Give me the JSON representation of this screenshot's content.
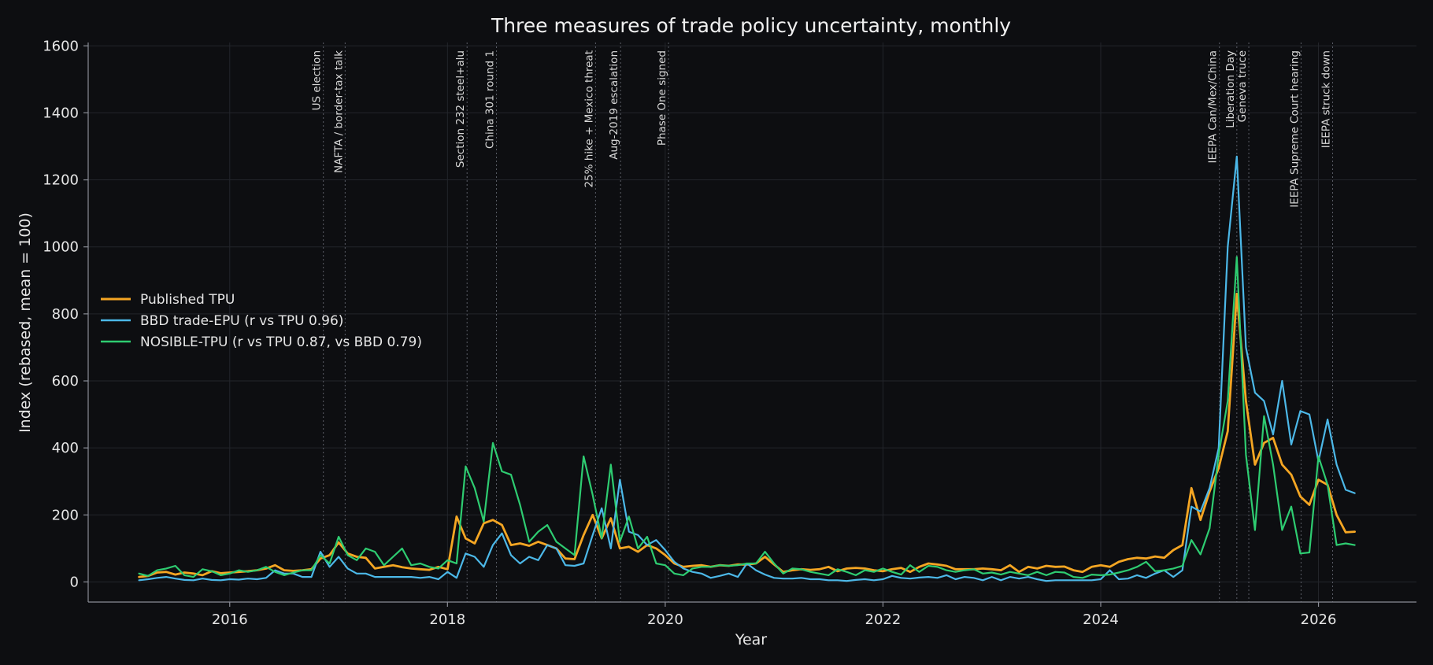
{
  "chart_data": {
    "type": "line",
    "title": "Three measures of trade policy uncertainty, monthly",
    "xlabel": "Year",
    "ylabel": "Index (rebased, mean = 100)",
    "xlim": [
      2014.7,
      2026.9
    ],
    "ylim": [
      -60,
      1610
    ],
    "xticks": [
      2016,
      2018,
      2020,
      2022,
      2024,
      2026
    ],
    "yticks": [
      0,
      200,
      400,
      600,
      800,
      1000,
      1200,
      1400,
      1600
    ],
    "grid": true,
    "legend_position": "center-left",
    "x_start": 2015.167,
    "x_step": 0.08333,
    "series": [
      {
        "name": "Published TPU",
        "color": "#f5a623",
        "values": [
          15,
          18,
          28,
          30,
          22,
          28,
          25,
          20,
          32,
          26,
          28,
          30,
          32,
          35,
          40,
          50,
          35,
          33,
          35,
          38,
          70,
          80,
          118,
          85,
          75,
          72,
          40,
          45,
          50,
          44,
          40,
          38,
          36,
          45,
          38,
          195,
          130,
          115,
          175,
          185,
          170,
          110,
          115,
          108,
          120,
          110,
          100,
          70,
          68,
          140,
          200,
          130,
          190,
          100,
          105,
          90,
          110,
          100,
          80,
          55,
          45,
          48,
          50,
          45,
          50,
          48,
          52,
          52,
          55,
          75,
          52,
          30,
          35,
          38,
          36,
          38,
          45,
          32,
          40,
          42,
          40,
          35,
          32,
          38,
          42,
          30,
          45,
          55,
          52,
          48,
          38,
          38,
          38,
          40,
          38,
          35,
          50,
          30,
          45,
          40,
          48,
          45,
          46,
          35,
          30,
          45,
          50,
          45,
          60,
          68,
          72,
          70,
          76,
          72,
          95,
          110,
          280,
          185,
          270,
          340,
          450,
          860,
          540,
          350,
          415,
          430,
          350,
          320,
          255,
          230,
          305,
          290,
          200,
          148,
          150
        ]
      },
      {
        "name": "BBD trade-EPU  (r vs TPU 0.96)",
        "color": "#4cb8e8",
        "values": [
          5,
          8,
          12,
          15,
          10,
          6,
          5,
          10,
          6,
          5,
          8,
          7,
          10,
          8,
          12,
          35,
          25,
          25,
          15,
          15,
          90,
          45,
          75,
          40,
          25,
          25,
          15,
          15,
          15,
          15,
          15,
          12,
          15,
          8,
          30,
          12,
          85,
          75,
          45,
          110,
          145,
          80,
          55,
          75,
          65,
          110,
          100,
          50,
          48,
          55,
          140,
          220,
          100,
          305,
          150,
          140,
          110,
          125,
          95,
          60,
          40,
          30,
          25,
          12,
          18,
          25,
          15,
          55,
          35,
          22,
          12,
          10,
          10,
          12,
          8,
          8,
          5,
          5,
          3,
          6,
          8,
          5,
          8,
          18,
          12,
          10,
          13,
          15,
          12,
          20,
          8,
          15,
          12,
          5,
          15,
          5,
          15,
          10,
          15,
          8,
          3,
          5,
          5,
          5,
          5,
          5,
          8,
          35,
          8,
          10,
          20,
          12,
          25,
          35,
          15,
          35,
          225,
          210,
          280,
          400,
          1000,
          1270,
          700,
          565,
          540,
          440,
          600,
          410,
          510,
          500,
          360,
          485,
          350,
          275,
          265
        ]
      },
      {
        "name": "NOSIBLE-TPU  (r vs TPU 0.87, vs BBD 0.79)",
        "color": "#2ecc71",
        "values": [
          25,
          18,
          35,
          40,
          48,
          20,
          15,
          38,
          32,
          20,
          25,
          35,
          30,
          35,
          45,
          30,
          20,
          28,
          35,
          35,
          80,
          55,
          135,
          80,
          65,
          100,
          90,
          50,
          75,
          100,
          50,
          55,
          45,
          40,
          65,
          55,
          345,
          280,
          180,
          415,
          330,
          320,
          230,
          120,
          150,
          170,
          120,
          100,
          80,
          375,
          260,
          130,
          350,
          120,
          195,
          100,
          135,
          55,
          50,
          25,
          20,
          40,
          45,
          45,
          50,
          48,
          50,
          55,
          55,
          90,
          55,
          25,
          40,
          38,
          30,
          25,
          20,
          38,
          30,
          20,
          35,
          30,
          40,
          30,
          22,
          50,
          30,
          48,
          45,
          35,
          30,
          35,
          38,
          25,
          28,
          22,
          30,
          25,
          20,
          30,
          20,
          30,
          28,
          15,
          12,
          22,
          20,
          22,
          28,
          35,
          45,
          60,
          32,
          35,
          40,
          48,
          125,
          82,
          160,
          380,
          540,
          970,
          380,
          155,
          495,
          350,
          155,
          225,
          85,
          88,
          375,
          290,
          110,
          115,
          110
        ]
      }
    ],
    "events": [
      {
        "x": 2016.86,
        "label": "US election"
      },
      {
        "x": 2017.06,
        "label": "NAFTA / border-tax talk"
      },
      {
        "x": 2018.18,
        "label": "Section 232 steel+alu"
      },
      {
        "x": 2018.45,
        "label": "China 301 round 1"
      },
      {
        "x": 2019.36,
        "label": "25% hike + Mexico threat"
      },
      {
        "x": 2019.59,
        "label": "Aug-2019 escalation"
      },
      {
        "x": 2020.03,
        "label": "Phase One signed"
      },
      {
        "x": 2025.09,
        "label": "IEEPA Can/Mex/China"
      },
      {
        "x": 2025.25,
        "label": "Liberation Day"
      },
      {
        "x": 2025.36,
        "label": "Geneva truce"
      },
      {
        "x": 2025.84,
        "label": "IEEPA Supreme Court hearing"
      },
      {
        "x": 2026.13,
        "label": "IEEPA struck down"
      }
    ]
  }
}
